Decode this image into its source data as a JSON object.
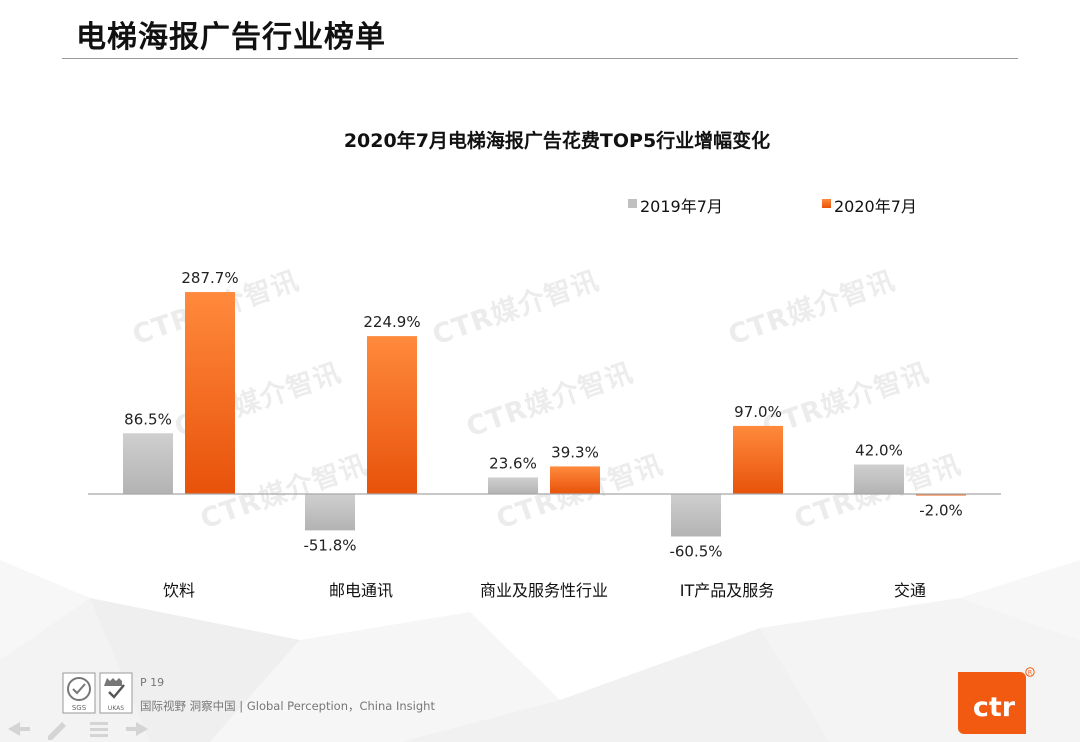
{
  "header": {
    "title": "电梯海报广告行业榜单"
  },
  "chart_data": {
    "type": "bar",
    "title": "2020年7月电梯海报广告花费TOP5行业增幅变化",
    "categories": [
      "饮料",
      "邮电通讯",
      "商业及服务性行业",
      "IT产品及服务",
      "交通"
    ],
    "series": [
      {
        "name": "2019年7月",
        "color": "#c0c0c0",
        "values": [
          86.5,
          -51.8,
          23.6,
          -60.5,
          42.0
        ]
      },
      {
        "name": "2020年7月",
        "color": "#f15a10",
        "values": [
          287.7,
          224.9,
          39.3,
          97.0,
          -2.0
        ]
      }
    ],
    "value_labels": [
      [
        "86.5%",
        "-51.8%",
        "23.6%",
        "-60.5%",
        "42.0%"
      ],
      [
        "287.7%",
        "224.9%",
        "39.3%",
        "97.0%",
        "-2.0%"
      ]
    ],
    "unit": "%",
    "legend_position": "top-right",
    "grid": false,
    "ylim": [
      -70,
      300
    ]
  },
  "watermark": {
    "text": "CTR媒介智讯"
  },
  "footer": {
    "page": "P 19",
    "slogan": "国际视野  洞察中国 |  Global Perception，China Insight",
    "brand": "ctr",
    "cert_sgs": "SGS",
    "cert_ukas": "UKAS"
  }
}
